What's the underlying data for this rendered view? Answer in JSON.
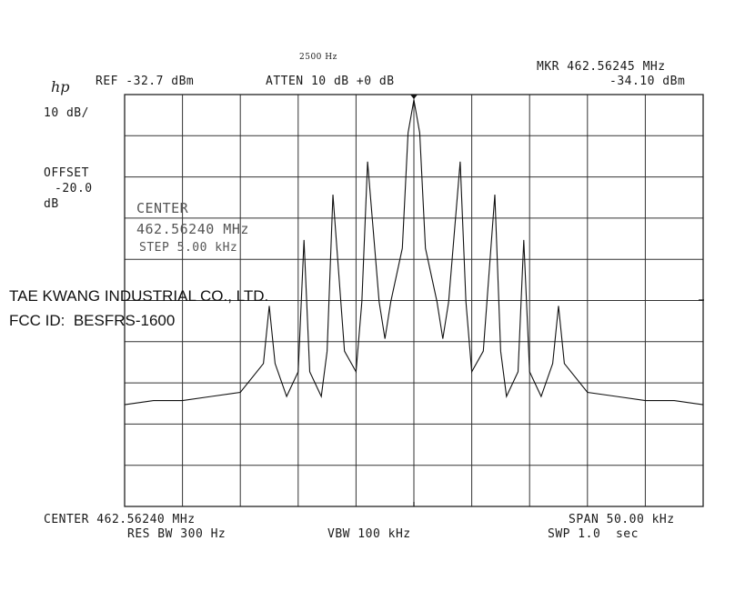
{
  "header": {
    "top_note": "2500 Hz",
    "logo": "hp",
    "ref": "REF -32.7 dBm",
    "atten": "ATTEN 10 dB +0 dB",
    "mkr_freq": "MKR 462.56245 MHz",
    "mkr_level": "-34.10 dBm"
  },
  "left_panel": {
    "scale": "10 dB/",
    "offset_label": "OFFSET",
    "offset_value": "-20.0",
    "offset_unit": "dB"
  },
  "inset": {
    "center_label": "CENTER",
    "center_freq": "462.56240 MHz",
    "step": "STEP 5.00 kHz"
  },
  "overlay": {
    "company": "TAE KWANG INDUSTRIAL CO., LTD.",
    "fcc_id": "FCC ID:  BESFRS-1600"
  },
  "footer": {
    "center": "CENTER 462.56240 MHz",
    "span": "SPAN 50.00 kHz",
    "res_bw": "RES BW 300 Hz",
    "vbw": "VBW 100 kHz",
    "swp": "SWP 1.0  sec"
  },
  "chart_data": {
    "type": "line",
    "x_unit": "kHz offset from center",
    "y_unit": "dBm",
    "xlim": [
      -25,
      25
    ],
    "ylim": [
      -132.7,
      -32.7
    ],
    "grid": true,
    "series": [
      {
        "x": [
          -25,
          -22.5,
          -20,
          -17.5,
          -15,
          -13,
          -12.5,
          -12,
          -11,
          -10,
          -9.5,
          -9,
          -8,
          -7.5,
          -7,
          -6,
          -5,
          -4.5,
          -4,
          -3,
          -2.5,
          -2,
          -1,
          -0.5,
          0,
          0.5,
          1,
          2,
          2.5,
          3,
          4,
          4.5,
          5,
          6,
          7,
          7.5,
          8,
          9,
          9.5,
          10,
          11,
          12,
          12.5,
          13,
          15,
          17.5,
          20,
          22.5,
          25
        ],
        "y": [
          -108,
          -107,
          -107,
          -106,
          -105,
          -98,
          -84,
          -98,
          -106,
          -100,
          -68,
          -100,
          -106,
          -95,
          -57,
          -95,
          -100,
          -83,
          -49,
          -83,
          -92,
          -83,
          -70,
          -42,
          -34,
          -42,
          -70,
          -83,
          -92,
          -83,
          -49,
          -83,
          -100,
          -95,
          -57,
          -95,
          -106,
          -100,
          -68,
          -100,
          -106,
          -98,
          -84,
          -98,
          -105,
          -106,
          -107,
          -107,
          -108
        ]
      }
    ]
  }
}
